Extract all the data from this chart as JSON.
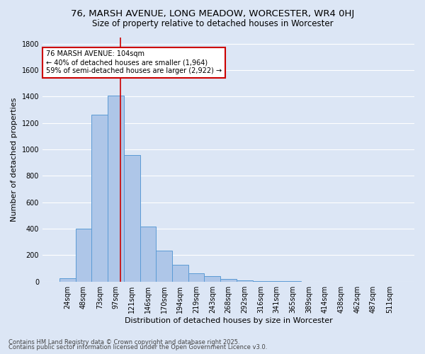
{
  "title_line1": "76, MARSH AVENUE, LONG MEADOW, WORCESTER, WR4 0HJ",
  "title_line2": "Size of property relative to detached houses in Worcester",
  "xlabel": "Distribution of detached houses by size in Worcester",
  "ylabel": "Number of detached properties",
  "categories": [
    "24sqm",
    "48sqm",
    "73sqm",
    "97sqm",
    "121sqm",
    "146sqm",
    "170sqm",
    "194sqm",
    "219sqm",
    "243sqm",
    "268sqm",
    "292sqm",
    "316sqm",
    "341sqm",
    "365sqm",
    "389sqm",
    "414sqm",
    "438sqm",
    "462sqm",
    "487sqm",
    "511sqm"
  ],
  "values": [
    25,
    400,
    1265,
    1410,
    960,
    415,
    235,
    125,
    65,
    42,
    18,
    8,
    5,
    3,
    2,
    1,
    1,
    0,
    0,
    0,
    0
  ],
  "bar_color": "#aec6e8",
  "bar_edge_color": "#5b9bd5",
  "background_color": "#dce6f5",
  "grid_color": "#ffffff",
  "vline_color": "#cc0000",
  "vline_x": 3.3,
  "annotation_text": "76 MARSH AVENUE: 104sqm\n← 40% of detached houses are smaller (1,964)\n59% of semi-detached houses are larger (2,922) →",
  "annotation_box_color": "#ffffff",
  "annotation_box_edge": "#cc0000",
  "ylim": [
    0,
    1850
  ],
  "yticks": [
    0,
    200,
    400,
    600,
    800,
    1000,
    1200,
    1400,
    1600,
    1800
  ],
  "footnote_line1": "Contains HM Land Registry data © Crown copyright and database right 2025.",
  "footnote_line2": "Contains public sector information licensed under the Open Government Licence v3.0.",
  "title_fontsize": 9.5,
  "subtitle_fontsize": 8.5,
  "axis_label_fontsize": 8,
  "tick_fontsize": 7,
  "annotation_fontsize": 7,
  "footnote_fontsize": 6
}
